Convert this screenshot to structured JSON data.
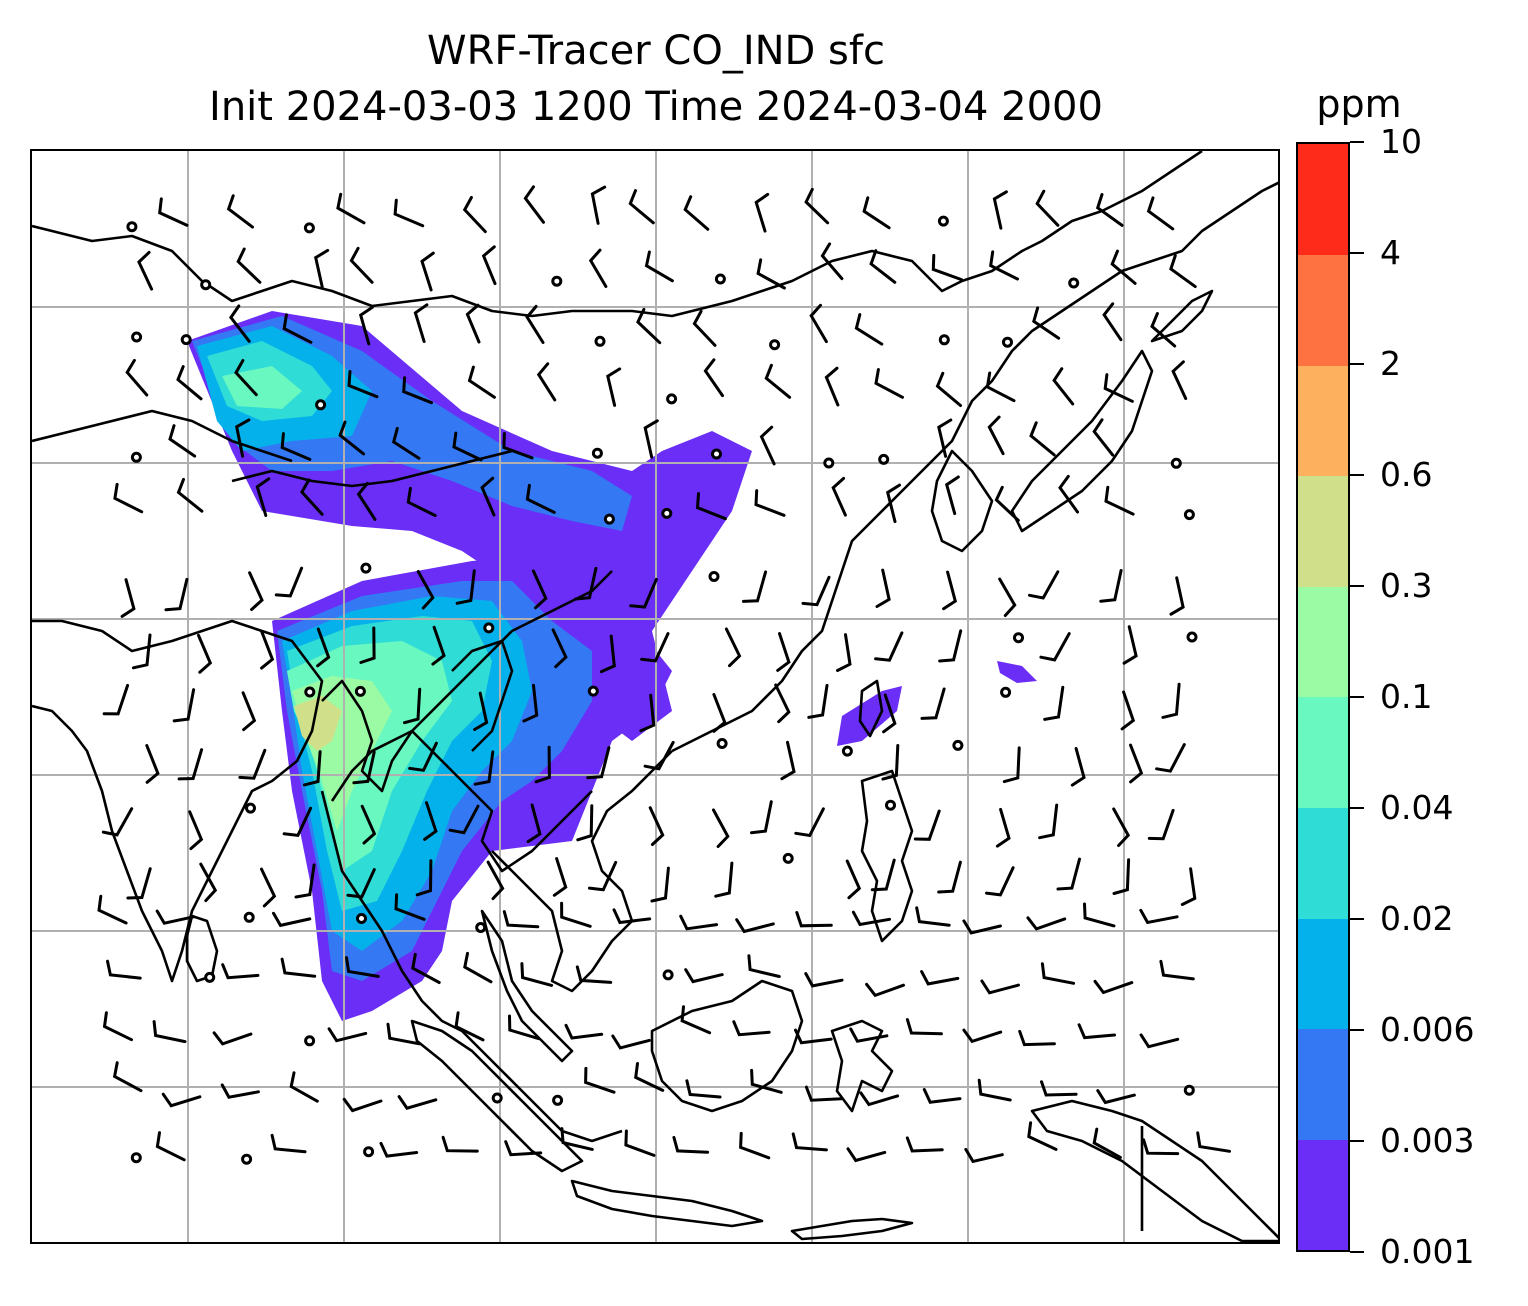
{
  "title": {
    "line1": "WRF-Tracer CO_IND sfc",
    "line2": "Init 2024-03-03 1200 Time 2024-03-04 2000"
  },
  "colorbar": {
    "unit": "ppm",
    "levels": [
      "0.001",
      "0.003",
      "0.006",
      "0.02",
      "0.04",
      "0.1",
      "0.3",
      "0.6",
      "2",
      "4",
      "10"
    ],
    "colors": [
      "#6a2ef6",
      "#3478f4",
      "#04b1eb",
      "#2fdcd6",
      "#69f8c0",
      "#9bfba4",
      "#d0e08a",
      "#fdb05e",
      "#fe7140",
      "#fe2a1a"
    ]
  },
  "map": {
    "coastline_color": "#000000",
    "grid_color": "#b0b0b0",
    "wind_barb_color": "#000000"
  }
}
